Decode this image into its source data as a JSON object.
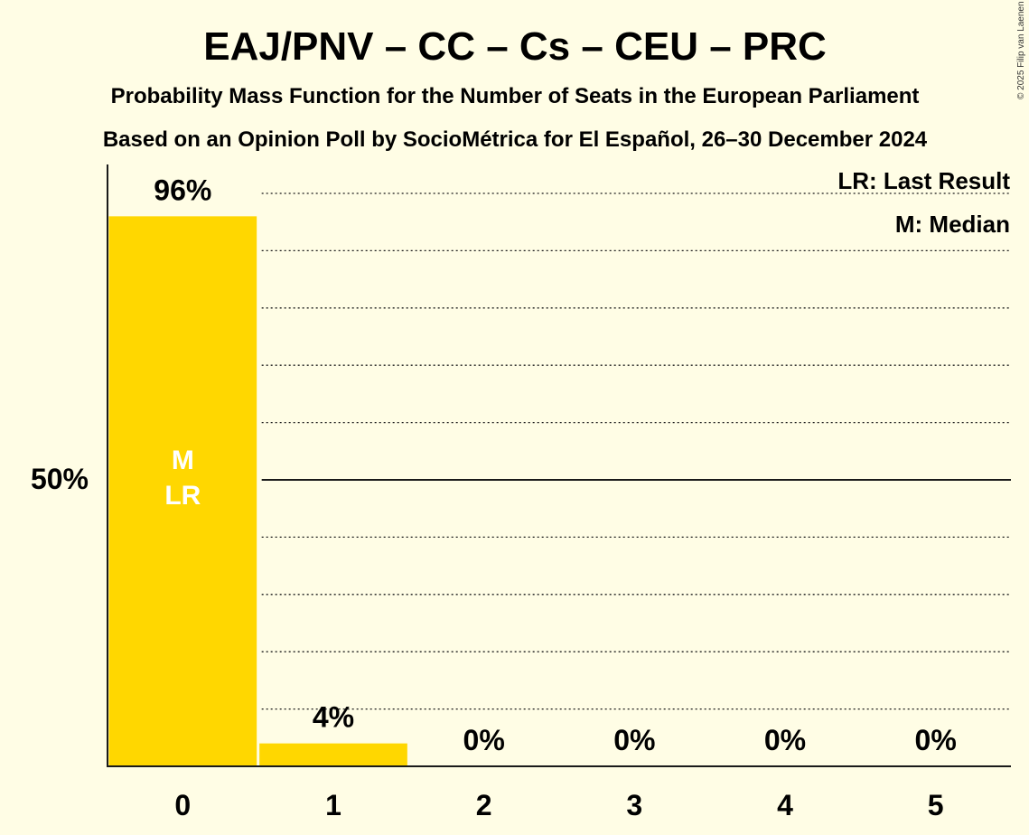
{
  "header": {
    "title": "EAJ/PNV – CC – Cs – CEU – PRC",
    "subtitle": "Probability Mass Function for the Number of Seats in the European Parliament",
    "source": "Based on an Opinion Poll by SocioMétrica for El Español, 26–30 December 2024",
    "copyright": "© 2025 Filip van Laenen"
  },
  "legend": {
    "last_result": "LR: Last Result",
    "median": "M: Median"
  },
  "colors": {
    "background": "#FFFDE5",
    "bar": "#FFD700",
    "axis": "#1a1a1a"
  },
  "chart_data": {
    "type": "bar",
    "categories": [
      "0",
      "1",
      "2",
      "3",
      "4",
      "5"
    ],
    "values": [
      96,
      4,
      0,
      0,
      0,
      0
    ],
    "value_labels": [
      "96%",
      "4%",
      "0%",
      "0%",
      "0%",
      "0%"
    ],
    "ytick_label": "50%",
    "ytick_value": 50,
    "ylim": [
      0,
      105
    ],
    "grid": true,
    "grid_step": 10,
    "median_seat": "0",
    "last_result_seat": "0",
    "median_marker": "M",
    "last_result_marker": "LR"
  }
}
